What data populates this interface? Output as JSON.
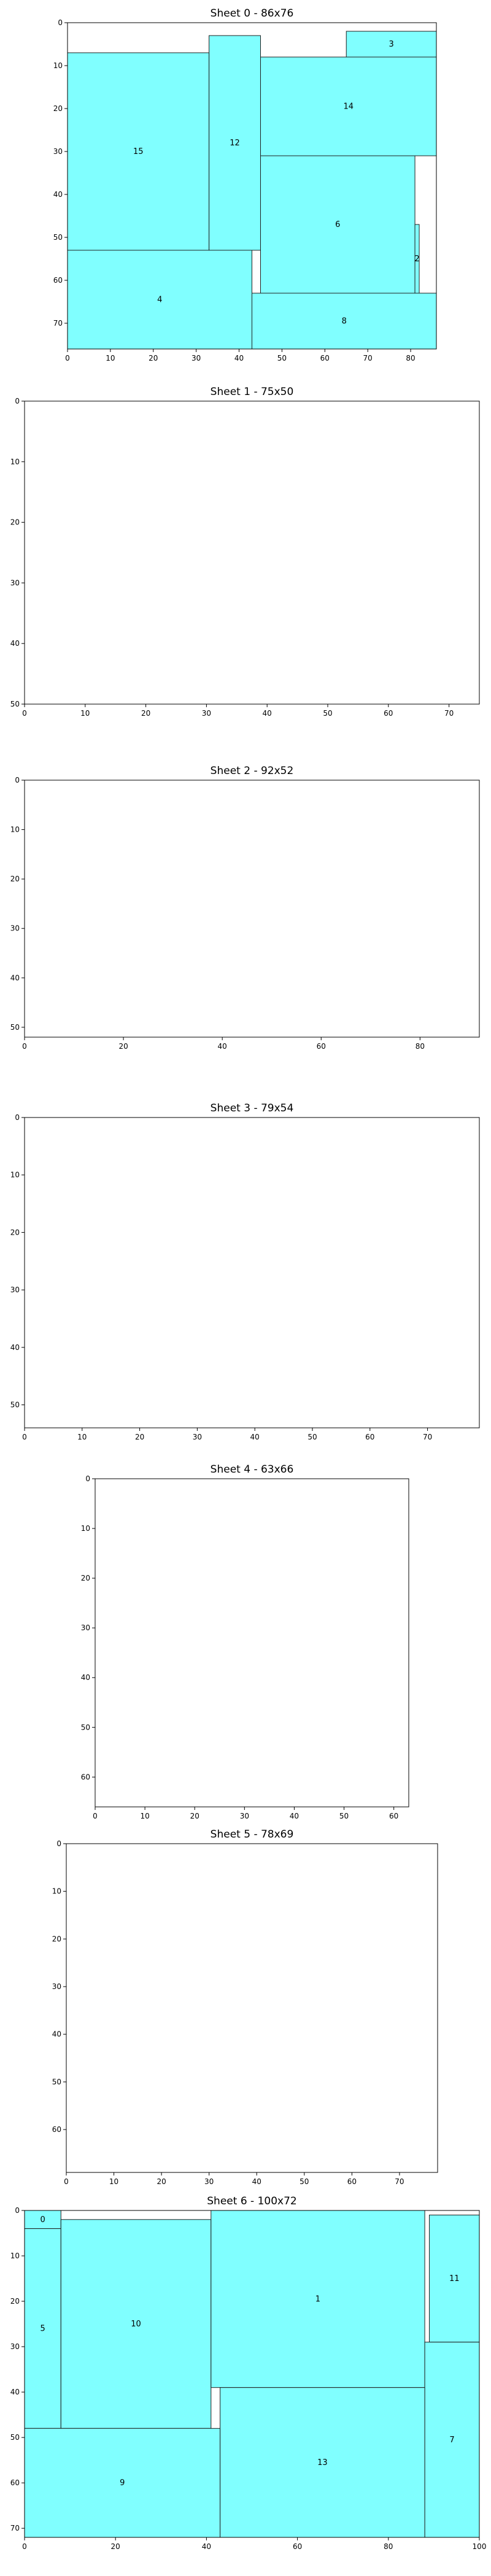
{
  "chart_data": [
    {
      "type": "rectangle-packing",
      "title": "Sheet 0 - 86x76",
      "xlim": [
        0,
        86
      ],
      "ylim": [
        0,
        76
      ],
      "y_inverted": true,
      "xticks": [
        0,
        10,
        20,
        30,
        40,
        50,
        60,
        70,
        80
      ],
      "yticks": [
        0,
        10,
        20,
        30,
        40,
        50,
        60,
        70
      ],
      "fill_color": "#80ffff",
      "rects": [
        {
          "label": "15",
          "x": 0,
          "y": 7,
          "w": 33,
          "h": 46
        },
        {
          "label": "12",
          "x": 33,
          "y": 3,
          "w": 12,
          "h": 50
        },
        {
          "label": "3",
          "x": 65,
          "y": 2,
          "w": 21,
          "h": 6
        },
        {
          "label": "14",
          "x": 45,
          "y": 8,
          "w": 41,
          "h": 23
        },
        {
          "label": "6",
          "x": 45,
          "y": 31,
          "w": 36,
          "h": 32
        },
        {
          "label": "2",
          "x": 81,
          "y": 47,
          "w": 1,
          "h": 16
        },
        {
          "label": "4",
          "x": 0,
          "y": 53,
          "w": 43,
          "h": 23
        },
        {
          "label": "8",
          "x": 43,
          "y": 63,
          "w": 43,
          "h": 13
        }
      ]
    },
    {
      "type": "rectangle-packing",
      "title": "Sheet 1 - 75x50",
      "xlim": [
        0,
        75
      ],
      "ylim": [
        0,
        50
      ],
      "y_inverted": true,
      "xticks": [
        0,
        10,
        20,
        30,
        40,
        50,
        60,
        70
      ],
      "yticks": [
        0,
        10,
        20,
        30,
        40,
        50
      ],
      "rects": []
    },
    {
      "type": "rectangle-packing",
      "title": "Sheet 2 - 92x52",
      "xlim": [
        0,
        92
      ],
      "ylim": [
        0,
        52
      ],
      "y_inverted": true,
      "xticks": [
        0,
        20,
        40,
        60,
        80
      ],
      "yticks": [
        0,
        10,
        20,
        30,
        40,
        50
      ],
      "rects": []
    },
    {
      "type": "rectangle-packing",
      "title": "Sheet 3 - 79x54",
      "xlim": [
        0,
        79
      ],
      "ylim": [
        0,
        54
      ],
      "y_inverted": true,
      "xticks": [
        0,
        10,
        20,
        30,
        40,
        50,
        60,
        70
      ],
      "yticks": [
        0,
        10,
        20,
        30,
        40,
        50
      ],
      "rects": []
    },
    {
      "type": "rectangle-packing",
      "title": "Sheet 4 - 63x66",
      "xlim": [
        0,
        63
      ],
      "ylim": [
        0,
        66
      ],
      "y_inverted": true,
      "xticks": [
        0,
        10,
        20,
        30,
        40,
        50,
        60
      ],
      "yticks": [
        0,
        10,
        20,
        30,
        40,
        50,
        60
      ],
      "rects": []
    },
    {
      "type": "rectangle-packing",
      "title": "Sheet 5 - 78x69",
      "xlim": [
        0,
        78
      ],
      "ylim": [
        0,
        69
      ],
      "y_inverted": true,
      "xticks": [
        0,
        10,
        20,
        30,
        40,
        50,
        60,
        70
      ],
      "yticks": [
        0,
        10,
        20,
        30,
        40,
        50,
        60
      ],
      "rects": []
    },
    {
      "type": "rectangle-packing",
      "title": "Sheet 6 - 100x72",
      "xlim": [
        0,
        100
      ],
      "ylim": [
        0,
        72
      ],
      "y_inverted": true,
      "xticks": [
        0,
        20,
        40,
        60,
        80,
        100
      ],
      "yticks": [
        0,
        10,
        20,
        30,
        40,
        50,
        60,
        70
      ],
      "fill_color": "#80ffff",
      "rects": [
        {
          "label": "0",
          "x": 0,
          "y": 0,
          "w": 8,
          "h": 4
        },
        {
          "label": "5",
          "x": 0,
          "y": 4,
          "w": 8,
          "h": 44
        },
        {
          "label": "10",
          "x": 8,
          "y": 2,
          "w": 33,
          "h": 46
        },
        {
          "label": "1",
          "x": 41,
          "y": 0,
          "w": 47,
          "h": 39
        },
        {
          "label": "11",
          "x": 89,
          "y": 1,
          "w": 11,
          "h": 28
        },
        {
          "label": "7",
          "x": 88,
          "y": 29,
          "w": 12,
          "h": 43
        },
        {
          "label": "9",
          "x": 0,
          "y": 48,
          "w": 43,
          "h": 24
        },
        {
          "label": "13",
          "x": 43,
          "y": 39,
          "w": 45,
          "h": 33
        }
      ]
    }
  ]
}
